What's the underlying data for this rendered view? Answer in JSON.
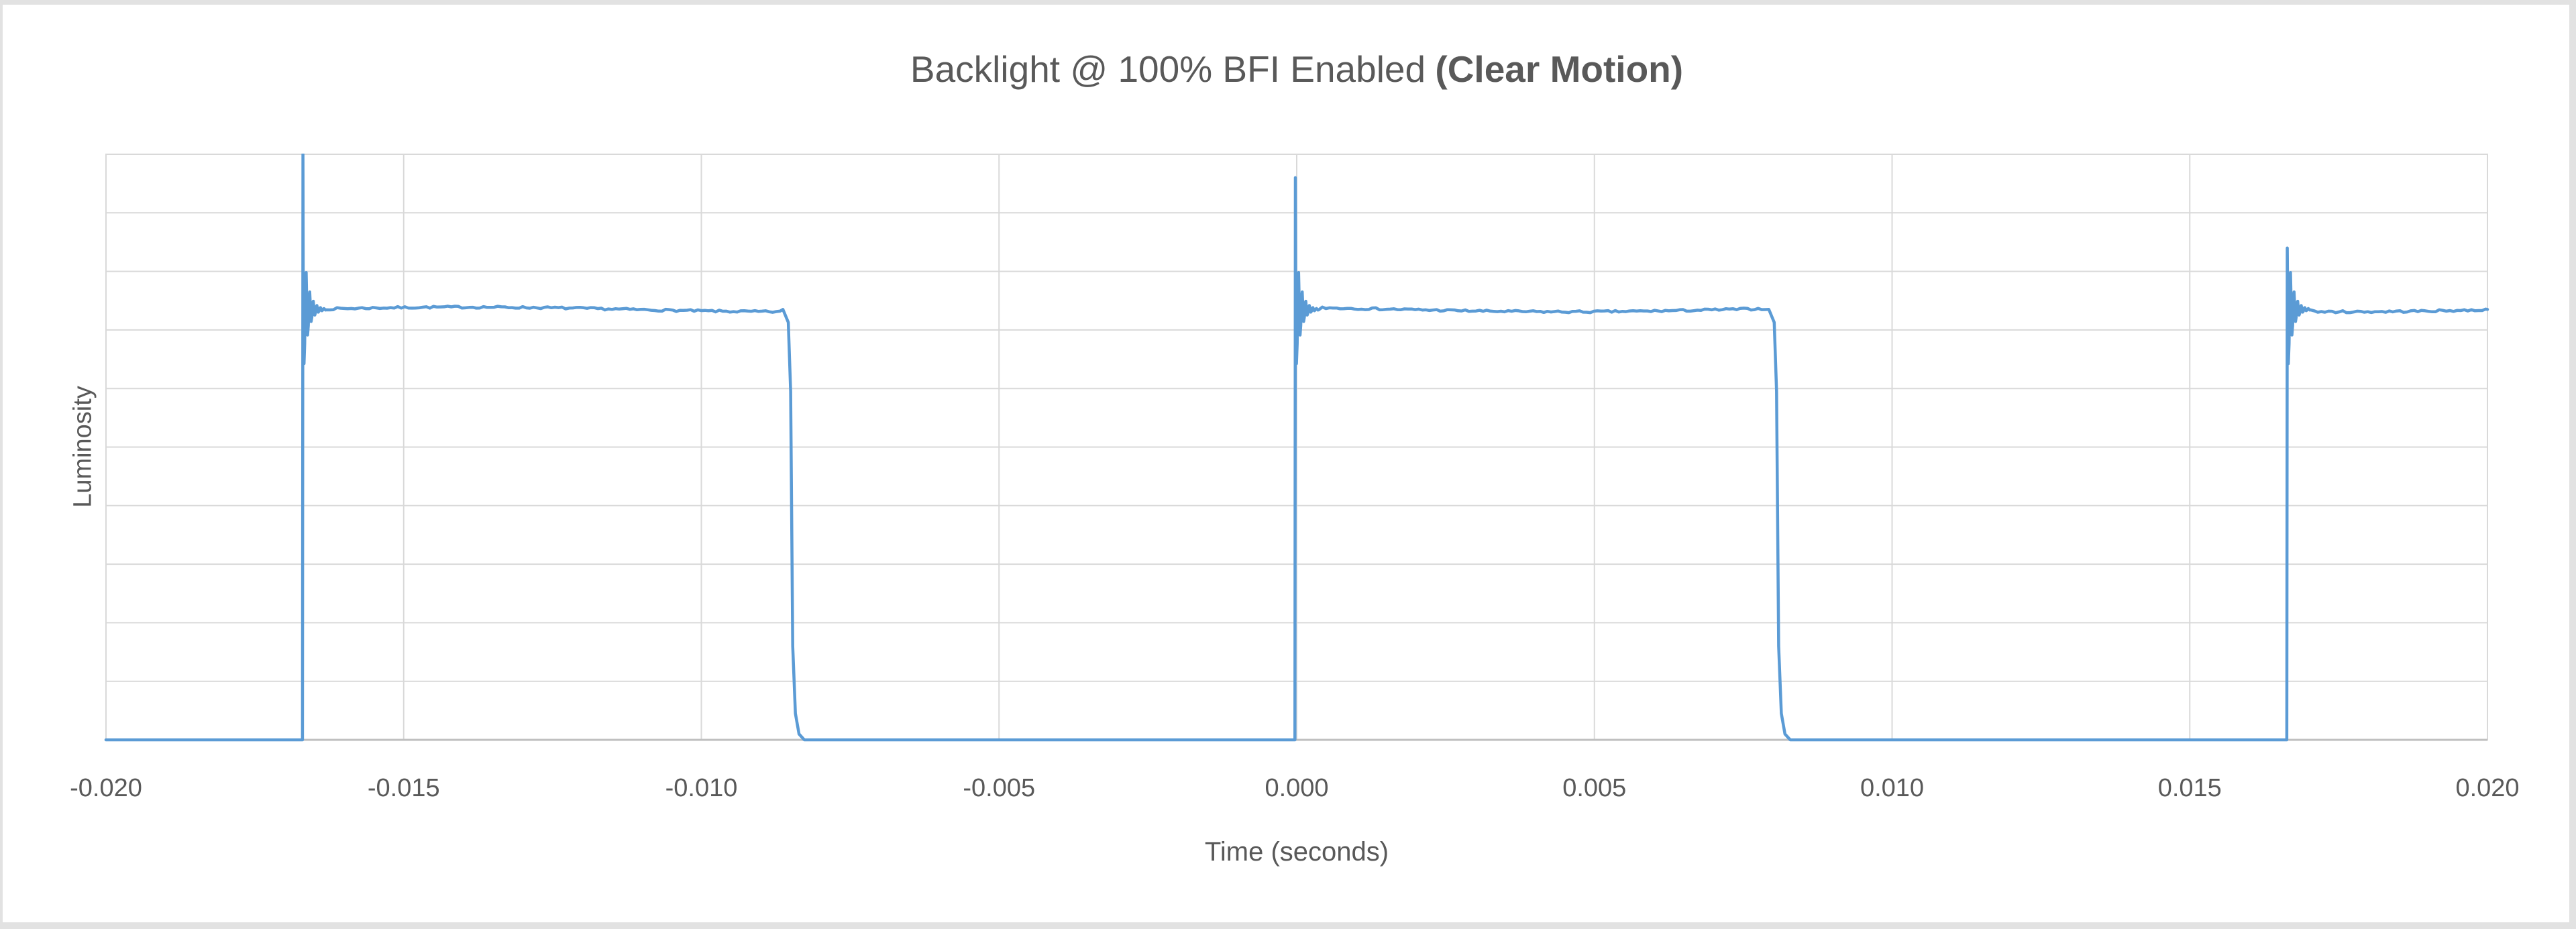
{
  "title": {
    "text_regular": "Backlight @ 100% BFI Enabled",
    "text_bold": "(Clear Motion)"
  },
  "theme": {
    "background": "#FFFFFF",
    "frame": "#E2E2E2",
    "text": "#595959",
    "gridline": "#D9D9D9",
    "axis_line": "#BFBFBF",
    "series_line": "#5B9BD5"
  },
  "chart_data": {
    "type": "line",
    "title": "Backlight @ 100% BFI Enabled (Clear Motion)",
    "xlabel": "Time (seconds)",
    "ylabel": "Luminosity",
    "xlim": [
      -0.02,
      0.02
    ],
    "ylim": [
      0,
      10
    ],
    "y_gridline_step": 1,
    "y_tick_labels_shown": false,
    "grid": true,
    "legend": null,
    "x_ticks": [
      {
        "label": "-0.020",
        "value": -0.02
      },
      {
        "label": "-0.015",
        "value": -0.015
      },
      {
        "label": "-0.010",
        "value": -0.01
      },
      {
        "label": "-0.005",
        "value": -0.005
      },
      {
        "label": "0.000",
        "value": 0.0
      },
      {
        "label": "0.005",
        "value": 0.005
      },
      {
        "label": "0.010",
        "value": 0.01
      },
      {
        "label": "0.015",
        "value": 0.015
      },
      {
        "label": "0.020",
        "value": 0.02
      }
    ],
    "series": [
      {
        "name": "Luminosity",
        "color": "#5B9BD5",
        "waveform": {
          "kind": "pulse_train",
          "frequency_hz": 60,
          "duty_cycle": 0.49,
          "base_level": 0,
          "steady_level": 7.35,
          "pulses": [
            {
              "rise": -0.0167,
              "fall": -0.00849,
              "peak": 10.0
            },
            {
              "rise": -3e-05,
              "fall": 0.00807,
              "peak": 9.6
            },
            {
              "rise": 0.01663,
              "fall": null,
              "peak": 8.4
            }
          ],
          "ringing": {
            "amplitude": 1.4,
            "period_s": 6e-05,
            "decay_s": 8e-05
          },
          "noise_amplitude": 0.018,
          "drift_amplitude": 0.04,
          "seed": 7
        }
      }
    ]
  }
}
